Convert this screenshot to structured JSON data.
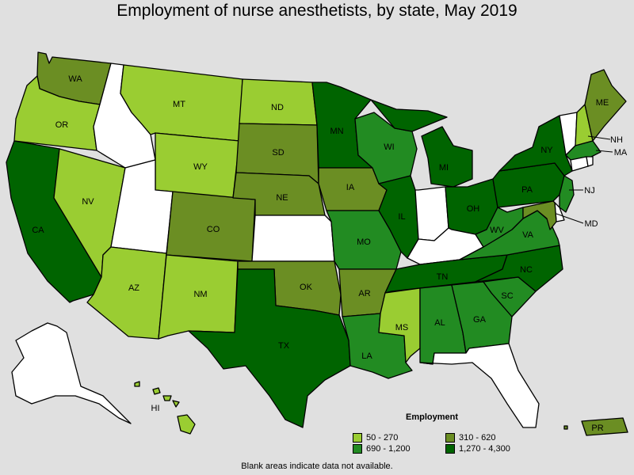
{
  "title": "Employment of nurse anesthetists, by state, May 2019",
  "legend": {
    "title": "Employment",
    "items": [
      {
        "range": "50 - 270",
        "color": "#9acd32"
      },
      {
        "range": "310 - 620",
        "color": "#6b8e23"
      },
      {
        "range": "690 - 1,200",
        "color": "#228b22"
      },
      {
        "range": "1,270 - 4,300",
        "color": "#006400"
      }
    ]
  },
  "note": "Blank areas indicate data not available.",
  "colors": {
    "background": "#e0e0e0",
    "no_data": "#ffffff"
  },
  "states": {
    "WA": {
      "label": "WA",
      "bin": "310 - 620"
    },
    "OR": {
      "label": "OR",
      "bin": "50 - 270"
    },
    "CA": {
      "label": "CA",
      "bin": "1,270 - 4,300"
    },
    "ID": {
      "label": "",
      "bin": null
    },
    "NV": {
      "label": "NV",
      "bin": "50 - 270"
    },
    "MT": {
      "label": "MT",
      "bin": "50 - 270"
    },
    "WY": {
      "label": "WY",
      "bin": "50 - 270"
    },
    "UT": {
      "label": "",
      "bin": null
    },
    "AZ": {
      "label": "AZ",
      "bin": "50 - 270"
    },
    "CO": {
      "label": "CO",
      "bin": "310 - 620"
    },
    "NM": {
      "label": "NM",
      "bin": "50 - 270"
    },
    "ND": {
      "label": "ND",
      "bin": "50 - 270"
    },
    "SD": {
      "label": "SD",
      "bin": "310 - 620"
    },
    "NE": {
      "label": "NE",
      "bin": "310 - 620"
    },
    "KS": {
      "label": "",
      "bin": null
    },
    "OK": {
      "label": "OK",
      "bin": "310 - 620"
    },
    "TX": {
      "label": "TX",
      "bin": "1,270 - 4,300"
    },
    "MN": {
      "label": "MN",
      "bin": "1,270 - 4,300"
    },
    "IA": {
      "label": "IA",
      "bin": "310 - 620"
    },
    "MO": {
      "label": "MO",
      "bin": "690 - 1,200"
    },
    "AR": {
      "label": "AR",
      "bin": "310 - 620"
    },
    "LA": {
      "label": "LA",
      "bin": "690 - 1,200"
    },
    "WI": {
      "label": "WI",
      "bin": "690 - 1,200"
    },
    "IL": {
      "label": "IL",
      "bin": "1,270 - 4,300"
    },
    "MI": {
      "label": "MI",
      "bin": "1,270 - 4,300"
    },
    "IN": {
      "label": "",
      "bin": null
    },
    "OH": {
      "label": "OH",
      "bin": "1,270 - 4,300"
    },
    "KY": {
      "label": "",
      "bin": null
    },
    "TN": {
      "label": "TN",
      "bin": "1,270 - 4,300"
    },
    "MS": {
      "label": "MS",
      "bin": "50 - 270"
    },
    "AL": {
      "label": "AL",
      "bin": "690 - 1,200"
    },
    "GA": {
      "label": "GA",
      "bin": "690 - 1,200"
    },
    "FL": {
      "label": "",
      "bin": null
    },
    "SC": {
      "label": "SC",
      "bin": "690 - 1,200"
    },
    "NC": {
      "label": "NC",
      "bin": "1,270 - 4,300"
    },
    "VA": {
      "label": "VA",
      "bin": "690 - 1,200"
    },
    "WV": {
      "label": "WV",
      "bin": "690 - 1,200"
    },
    "PA": {
      "label": "PA",
      "bin": "1,270 - 4,300"
    },
    "NY": {
      "label": "NY",
      "bin": "1,270 - 4,300"
    },
    "VT": {
      "label": "",
      "bin": null
    },
    "NH": {
      "label": "NH",
      "bin": "50 - 270"
    },
    "ME": {
      "label": "ME",
      "bin": "310 - 620"
    },
    "MA": {
      "label": "MA",
      "bin": "690 - 1,200"
    },
    "RI": {
      "label": "",
      "bin": null
    },
    "CT": {
      "label": "",
      "bin": null
    },
    "NJ": {
      "label": "NJ",
      "bin": "690 - 1,200"
    },
    "DE": {
      "label": "",
      "bin": null
    },
    "MD": {
      "label": "MD",
      "bin": "310 - 620"
    },
    "AK": {
      "label": "",
      "bin": null
    },
    "HI": {
      "label": "HI",
      "bin": "50 - 270"
    },
    "PR": {
      "label": "PR",
      "bin": "310 - 620"
    }
  }
}
